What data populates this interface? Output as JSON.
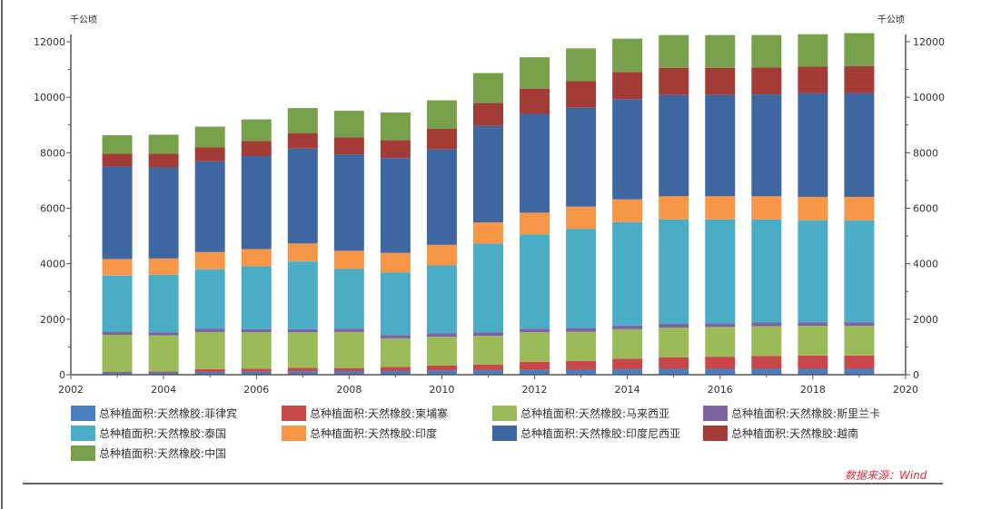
{
  "chart_data": {
    "type": "bar",
    "stacked": true,
    "unit_left": "千公顷",
    "unit_right": "千公顷",
    "xlim": [
      2002,
      2020
    ],
    "ylim": [
      0,
      12500
    ],
    "xticks": [
      2002,
      2004,
      2006,
      2008,
      2010,
      2012,
      2014,
      2016,
      2018,
      2020
    ],
    "yticks": [
      0,
      2000,
      4000,
      6000,
      8000,
      10000,
      12000
    ],
    "grid": false,
    "legend_position": "bottom",
    "categories": [
      2003,
      2004,
      2005,
      2006,
      2007,
      2008,
      2009,
      2010,
      2011,
      2012,
      2013,
      2014,
      2015,
      2016,
      2017,
      2018,
      2019
    ],
    "series": [
      {
        "name": "总种植面积:天然橡胶:菲律宾",
        "color": "#4a7ebf",
        "values": [
          80,
          80,
          100,
          110,
          120,
          130,
          130,
          150,
          160,
          170,
          180,
          200,
          210,
          210,
          210,
          210,
          210
        ]
      },
      {
        "name": "总种植面积:天然橡胶:柬埔寨",
        "color": "#c8474a",
        "values": [
          30,
          40,
          100,
          110,
          130,
          110,
          150,
          180,
          210,
          290,
          320,
          380,
          420,
          440,
          460,
          480,
          480
        ]
      },
      {
        "name": "总种植面积:天然橡胶:马来西亚",
        "color": "#9bbb59",
        "values": [
          1330,
          1300,
          1340,
          1310,
          1280,
          1300,
          1030,
          1040,
          1030,
          1070,
          1050,
          1060,
          1070,
          1070,
          1080,
          1070,
          1070
        ]
      },
      {
        "name": "总种植面积:天然橡胶:斯里兰卡",
        "color": "#7f61a6",
        "values": [
          110,
          110,
          110,
          110,
          110,
          120,
          120,
          120,
          130,
          130,
          130,
          130,
          130,
          130,
          130,
          130,
          130
        ]
      },
      {
        "name": "总种植面积:天然橡胶:泰国",
        "color": "#4bacc6",
        "values": [
          2020,
          2070,
          2150,
          2270,
          2440,
          2150,
          2260,
          2450,
          3200,
          3400,
          3580,
          3730,
          3770,
          3750,
          3720,
          3680,
          3680
        ]
      },
      {
        "name": "总种植面积:天然橡胶:印度",
        "color": "#f79646",
        "values": [
          600,
          590,
          620,
          620,
          650,
          660,
          700,
          740,
          760,
          780,
          800,
          820,
          830,
          830,
          830,
          840,
          840
        ]
      },
      {
        "name": "总种植面积:天然橡胶:印度尼西亚",
        "color": "#3e67a1",
        "values": [
          3330,
          3280,
          3270,
          3350,
          3420,
          3470,
          3420,
          3440,
          3480,
          3560,
          3560,
          3610,
          3650,
          3650,
          3670,
          3730,
          3730
        ]
      },
      {
        "name": "总种植面积:天然橡胶:越南",
        "color": "#a33b37",
        "values": [
          470,
          490,
          510,
          550,
          560,
          620,
          640,
          740,
          820,
          910,
          960,
          980,
          980,
          980,
          970,
          960,
          980
        ]
      },
      {
        "name": "总种植面积:天然橡胶:中国",
        "color": "#77a04a",
        "values": [
          660,
          690,
          740,
          770,
          900,
          950,
          1000,
          1030,
          1080,
          1130,
          1180,
          1200,
          1180,
          1180,
          1170,
          1170,
          1190
        ]
      }
    ]
  },
  "source": "数据来源：Wind"
}
